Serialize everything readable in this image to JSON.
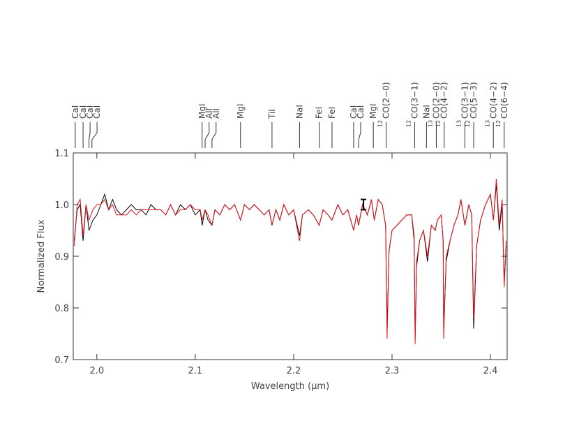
{
  "chart_data": {
    "type": "line",
    "x_label": "Wavelength (μm)",
    "y_label": "Normalized Flux",
    "xlim": [
      1.976,
      2.417
    ],
    "ylim": [
      0.7,
      1.1
    ],
    "xticks": [
      {
        "value": 2.0,
        "label": "2.0"
      },
      2.1,
      2.2,
      2.3,
      2.4
    ],
    "yticks": [
      0.7,
      0.8,
      0.9,
      {
        "value": 1.0,
        "label": "1.0"
      },
      1.1
    ],
    "x": [
      1.977,
      1.98,
      1.983,
      1.986,
      1.989,
      1.992,
      1.996,
      2.0,
      2.004,
      2.008,
      2.012,
      2.016,
      2.02,
      2.025,
      2.03,
      2.035,
      2.04,
      2.045,
      2.05,
      2.055,
      2.06,
      2.065,
      2.07,
      2.075,
      2.08,
      2.085,
      2.09,
      2.095,
      2.1,
      2.105,
      2.107,
      2.11,
      2.113,
      2.117,
      2.12,
      2.125,
      2.13,
      2.135,
      2.14,
      2.146,
      2.15,
      2.155,
      2.16,
      2.165,
      2.17,
      2.175,
      2.178,
      2.182,
      2.186,
      2.19,
      2.195,
      2.2,
      2.206,
      2.209,
      2.215,
      2.22,
      2.226,
      2.23,
      2.235,
      2.239,
      2.245,
      2.25,
      2.255,
      2.261,
      2.264,
      2.266,
      2.27,
      2.275,
      2.279,
      2.282,
      2.286,
      2.29,
      2.2935,
      2.295,
      2.297,
      2.3,
      2.305,
      2.31,
      2.315,
      2.32,
      2.3225,
      2.3235,
      2.325,
      2.328,
      2.332,
      2.336,
      2.34,
      2.344,
      2.346,
      2.35,
      2.352,
      2.3525,
      2.355,
      2.359,
      2.363,
      2.367,
      2.37,
      2.374,
      2.378,
      2.381,
      2.383,
      2.386,
      2.39,
      2.395,
      2.4,
      2.403,
      2.406,
      2.409,
      2.412,
      2.414,
      2.416
    ],
    "series": [
      {
        "color": "#000000",
        "values": [
          0.93,
          0.99,
          1.0,
          0.93,
          1.0,
          0.95,
          0.97,
          0.98,
          1.0,
          1.02,
          0.99,
          1.01,
          0.99,
          0.98,
          0.99,
          1.0,
          0.99,
          0.99,
          0.98,
          1.0,
          0.99,
          0.99,
          0.98,
          1.0,
          0.98,
          1.0,
          0.99,
          1.0,
          0.98,
          0.99,
          0.96,
          0.99,
          0.97,
          0.96,
          0.99,
          0.98,
          1.0,
          0.99,
          1.0,
          0.97,
          1.0,
          0.99,
          1.0,
          0.99,
          0.98,
          0.99,
          0.96,
          0.99,
          0.97,
          1.0,
          0.98,
          0.99,
          0.94,
          0.98,
          0.99,
          0.98,
          0.96,
          0.99,
          0.98,
          0.97,
          1.0,
          0.98,
          0.99,
          0.95,
          0.98,
          0.96,
          1.0,
          0.98,
          1.01,
          0.97,
          1.01,
          1.0,
          0.96,
          0.76,
          0.91,
          0.95,
          0.96,
          0.97,
          0.98,
          0.98,
          0.93,
          0.74,
          0.88,
          0.93,
          0.95,
          0.89,
          0.96,
          0.95,
          0.97,
          0.98,
          0.93,
          0.76,
          0.89,
          0.93,
          0.96,
          0.98,
          1.01,
          0.96,
          1.0,
          0.98,
          0.76,
          0.92,
          0.97,
          1.0,
          1.02,
          0.97,
          1.04,
          0.95,
          1.0,
          0.85,
          0.92
        ]
      },
      {
        "color": "#e8101a",
        "values": [
          0.92,
          1.0,
          1.01,
          0.94,
          1.0,
          0.97,
          0.99,
          1.0,
          1.0,
          1.01,
          0.99,
          1.0,
          0.98,
          0.98,
          0.98,
          0.99,
          0.98,
          0.99,
          0.99,
          0.99,
          0.99,
          0.99,
          0.98,
          1.0,
          0.98,
          0.99,
          0.99,
          1.0,
          0.99,
          0.99,
          0.97,
          0.99,
          0.98,
          0.96,
          0.99,
          0.98,
          1.0,
          0.99,
          1.0,
          0.97,
          1.0,
          0.99,
          1.0,
          0.99,
          0.98,
          0.99,
          0.96,
          0.99,
          0.97,
          1.0,
          0.98,
          0.99,
          0.93,
          0.98,
          0.99,
          0.98,
          0.96,
          0.99,
          0.98,
          0.97,
          1.0,
          0.98,
          0.99,
          0.95,
          0.98,
          0.96,
          1.0,
          0.98,
          1.01,
          0.97,
          1.01,
          1.0,
          0.96,
          0.74,
          0.91,
          0.95,
          0.96,
          0.97,
          0.98,
          0.98,
          0.94,
          0.73,
          0.89,
          0.93,
          0.95,
          0.9,
          0.96,
          0.95,
          0.97,
          0.98,
          0.93,
          0.74,
          0.9,
          0.93,
          0.96,
          0.98,
          1.01,
          0.96,
          1.0,
          0.98,
          0.78,
          0.92,
          0.97,
          1.0,
          1.02,
          0.97,
          1.05,
          0.96,
          1.01,
          0.84,
          0.93
        ]
      }
    ],
    "error_bar": {
      "x": 2.271,
      "y": 1.0,
      "error": 0.01
    },
    "features": [
      {
        "label": "CaI",
        "x": 1.978
      },
      {
        "label": "CaI",
        "x": 1.986
      },
      {
        "label": "CaI",
        "x": 1.992
      },
      {
        "label": "CaI",
        "x": 1.995
      },
      {
        "label": "MgI",
        "x": 2.107
      },
      {
        "label": "AlI",
        "x": 2.11
      },
      {
        "label": "AlI",
        "x": 2.117
      },
      {
        "label": "MgI",
        "x": 2.146
      },
      {
        "label": "TiI",
        "x": 2.178
      },
      {
        "label": "NaI",
        "x": 2.206
      },
      {
        "label": "FeI",
        "x": 2.226
      },
      {
        "label": "FeI",
        "x": 2.239
      },
      {
        "label": "CaI",
        "x": 2.261
      },
      {
        "label": "CaI",
        "x": 2.266
      },
      {
        "label": "MgI",
        "x": 2.281
      },
      {
        "label": "CO(2−0)",
        "isotope": "12",
        "x": 2.294
      },
      {
        "label": "CO(3−1)",
        "isotope": "12",
        "x": 2.323
      },
      {
        "label": "NaI",
        "x": 2.335
      },
      {
        "label": "CO(2−0)",
        "isotope": "13",
        "x": 2.345
      },
      {
        "label": "CO(4−2)",
        "isotope": "12",
        "x": 2.353
      },
      {
        "label": "CO(3−1)",
        "isotope": "13",
        "x": 2.374
      },
      {
        "label": "CO(5−3)",
        "isotope": "12",
        "x": 2.383
      },
      {
        "label": "CO(4−2)",
        "isotope": "13",
        "x": 2.403
      },
      {
        "label": "CO(6−4)",
        "isotope": "12",
        "x": 2.414
      }
    ]
  }
}
